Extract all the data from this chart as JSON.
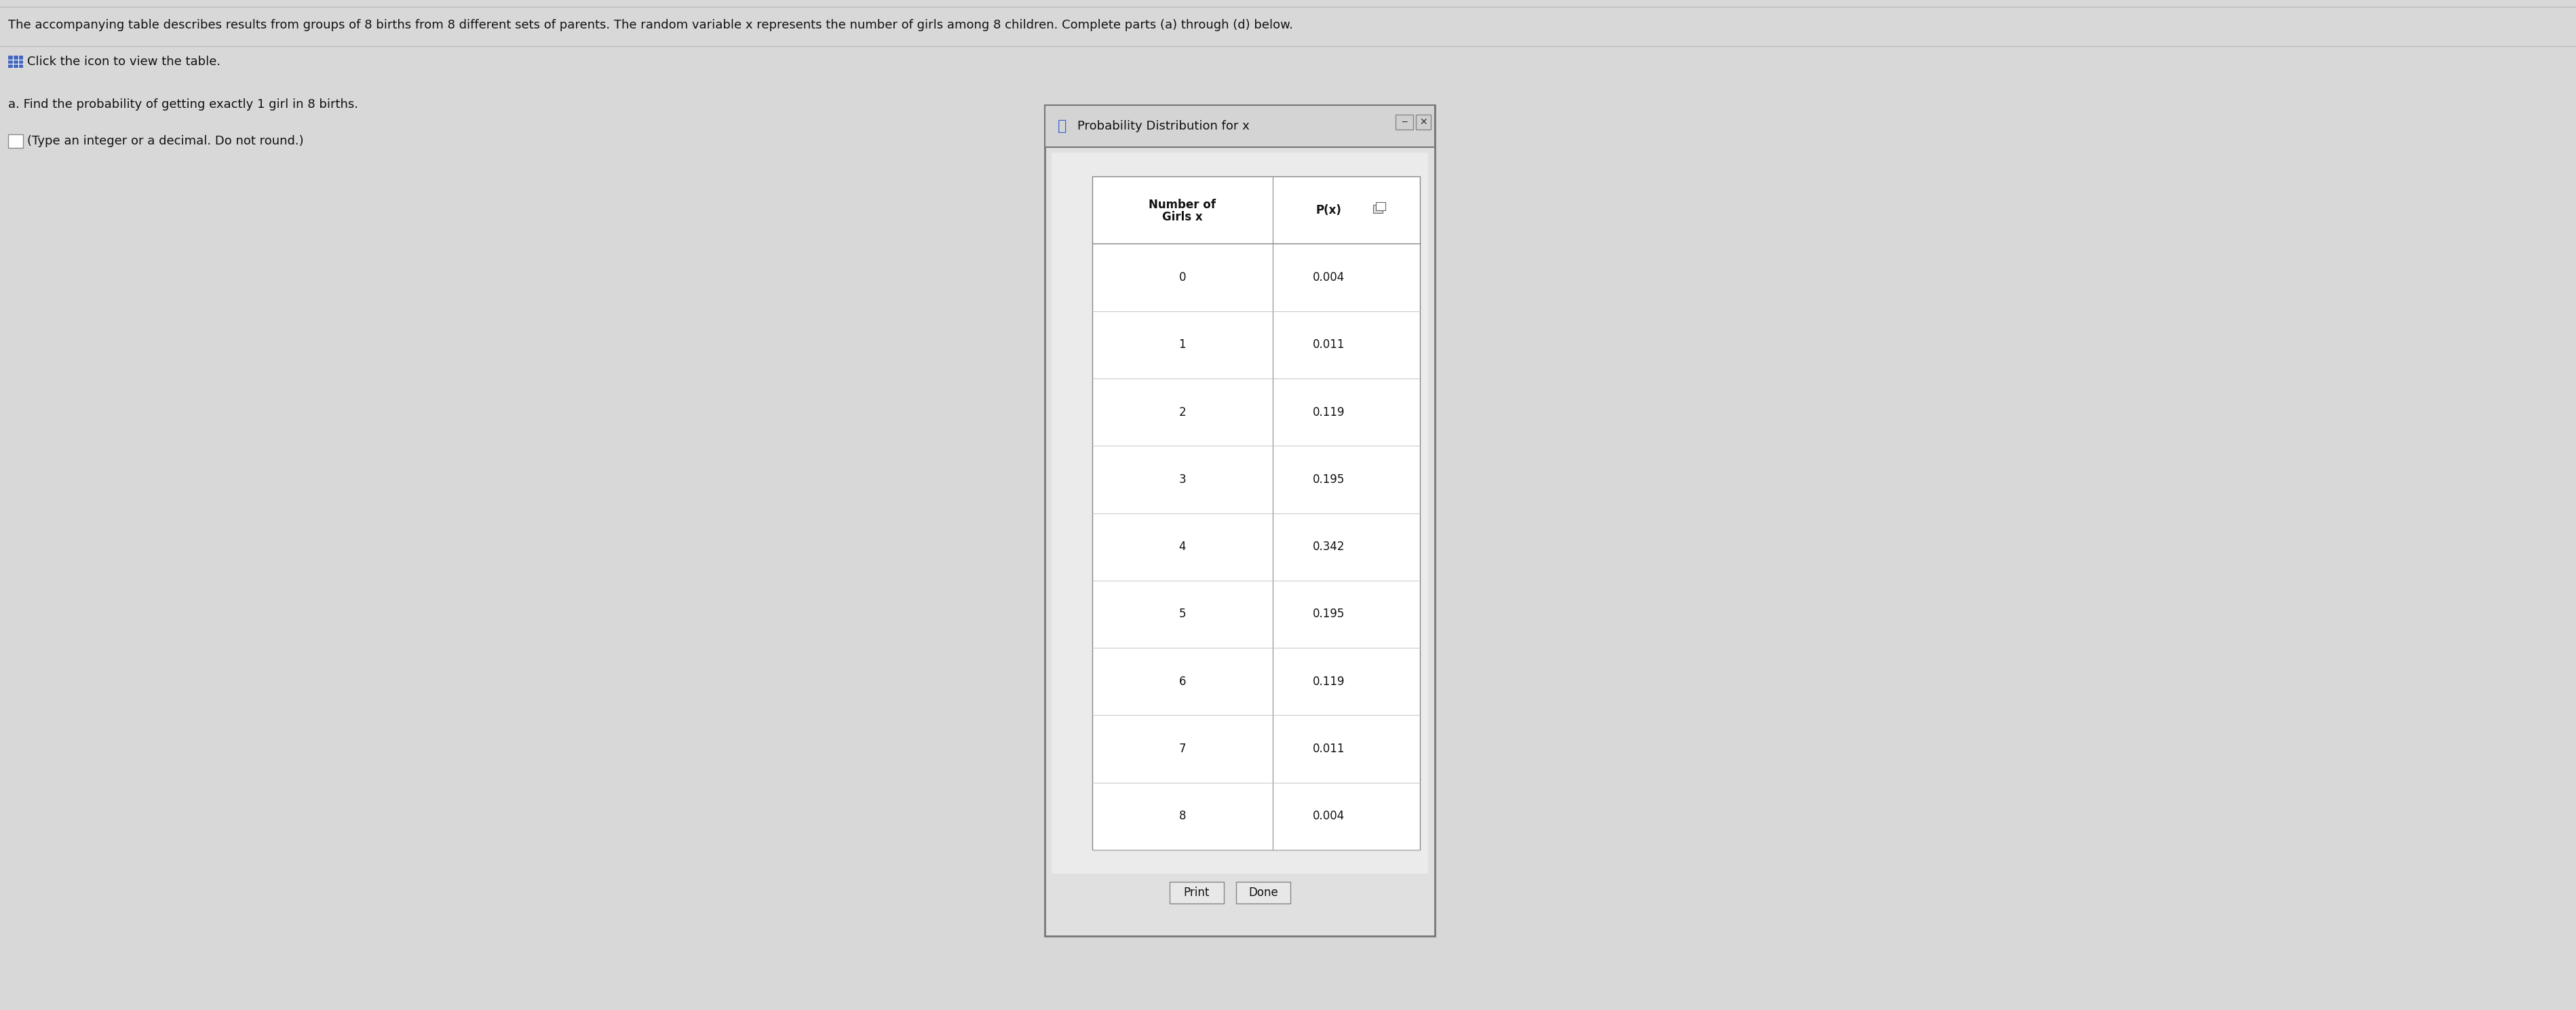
{
  "title_text": "The accompanying table describes results from groups of 8 births from 8 different sets of parents. The random variable x represents the number of girls among 8 children. Complete parts (a) through (d) below.",
  "click_text": "Click the icon to view the table.",
  "part_a_text": "a. Find the probability of getting exactly 1 girl in 8 births.",
  "type_text": "(Type an integer or a decimal. Do not round.)",
  "popup_title": "Probability Distribution for x",
  "col1_header_line1": "Number of",
  "col1_header_line2": "Girls x",
  "col2_header": "P(x)",
  "x_values": [
    0,
    1,
    2,
    3,
    4,
    5,
    6,
    7,
    8
  ],
  "p_values": [
    "0.004",
    "0.011",
    "0.119",
    "0.195",
    "0.342",
    "0.195",
    "0.119",
    "0.011",
    "0.004"
  ],
  "print_text": "Print",
  "done_text": "Done",
  "bg_color": "#d8d8d8",
  "popup_outer_bg": "#d0d0d0",
  "popup_inner_bg": "#e8e8e8",
  "table_bg": "#ffffff",
  "title_bar_bg": "#c8c8c8",
  "border_color": "#888888",
  "title_fontsize": 13,
  "body_fontsize": 13,
  "table_fontsize": 12
}
